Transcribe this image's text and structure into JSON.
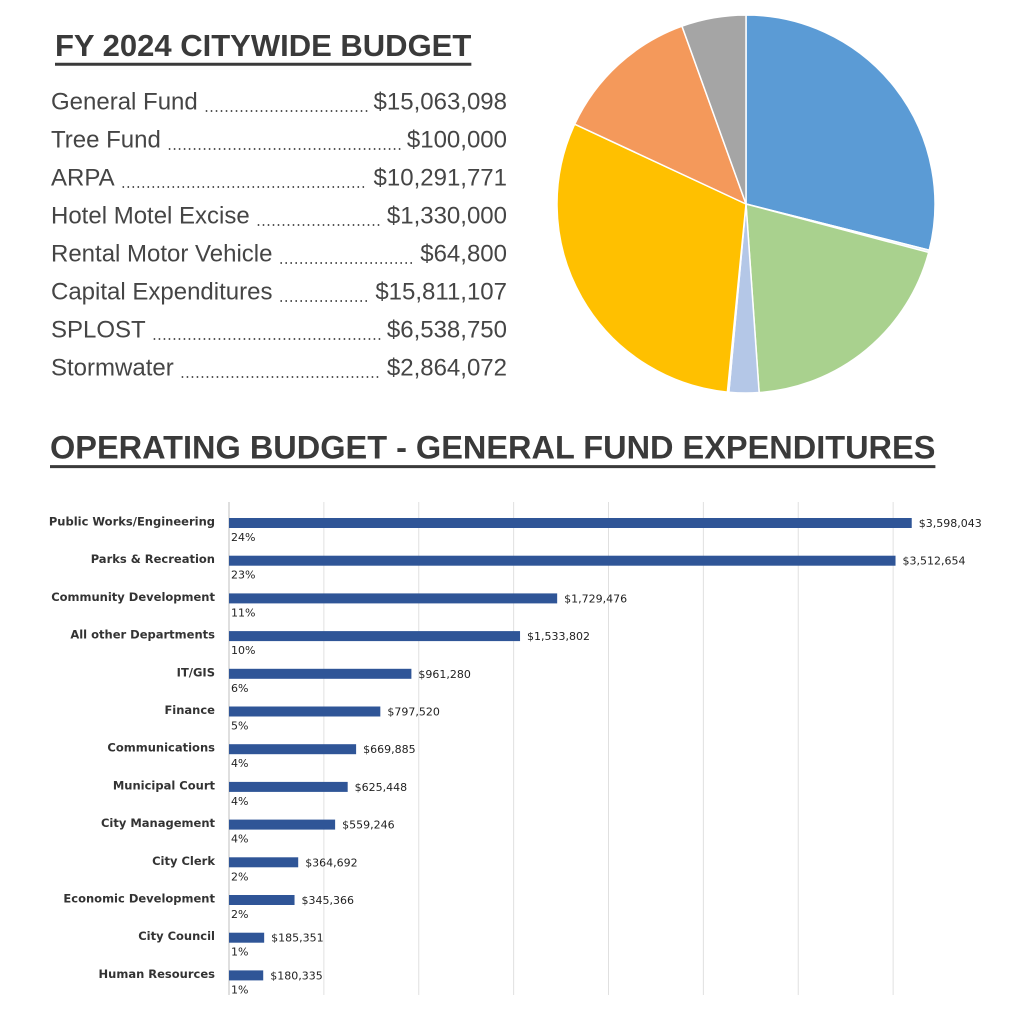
{
  "chart_data": [
    {
      "type": "pie",
      "title": "FY 2024 CITYWIDE BUDGET",
      "categories": [
        "General Fund",
        "Tree Fund",
        "ARPA",
        "Hotel Motel Excise",
        "Rental Motor Vehicle",
        "Capital Expenditures",
        "SPLOST",
        "Stormwater"
      ],
      "values": [
        15063098,
        100000,
        10291771,
        1330000,
        64800,
        15811107,
        6538750,
        2864072
      ],
      "value_labels": [
        "$15,063,098",
        "$100,000",
        "$10,291,771",
        "$1,330,000",
        "$64,800",
        "$15,811,107",
        "$6,538,750",
        "$2,864,072"
      ],
      "colors": [
        "#5b9bd5",
        "#dfe9f5",
        "#a9d18e",
        "#b4c7e7",
        "#4472c4",
        "#ffc000",
        "#f4995b",
        "#a5a5a5"
      ]
    },
    {
      "type": "bar",
      "orientation": "horizontal",
      "title": "OPERATING  BUDGET - GENERAL FUND EXPENDITURES",
      "categories": [
        "Public Works/Engineering",
        "Parks & Recreation",
        "Community Development",
        "All other Departments",
        "IT/GIS",
        "Finance",
        "Communications",
        "Municipal Court",
        "City Management",
        "City Clerk",
        "Economic Development",
        "City Council",
        "Human Resources"
      ],
      "values": [
        3598043,
        3512654,
        1729476,
        1533802,
        961280,
        797520,
        669885,
        625448,
        559246,
        364692,
        345366,
        185351,
        180335
      ],
      "value_labels": [
        "$3,598,043",
        "$3,512,654",
        "$1,729,476",
        "$1,533,802",
        "$961,280",
        "$797,520",
        "$669,885",
        "$625,448",
        "$559,246",
        "$364,692",
        "$345,366",
        "$185,351",
        "$180,335"
      ],
      "percent_labels": [
        "24%",
        "23%",
        "11%",
        "10%",
        "6%",
        "5%",
        "4%",
        "4%",
        "4%",
        "2%",
        "2%",
        "1%",
        "1%"
      ],
      "color": "#2f5597",
      "xlim": [
        0,
        4000000
      ],
      "xticks": [
        0,
        500000,
        1000000,
        1500000,
        2000000,
        2500000,
        3000000,
        3500000
      ],
      "grid": true
    }
  ]
}
